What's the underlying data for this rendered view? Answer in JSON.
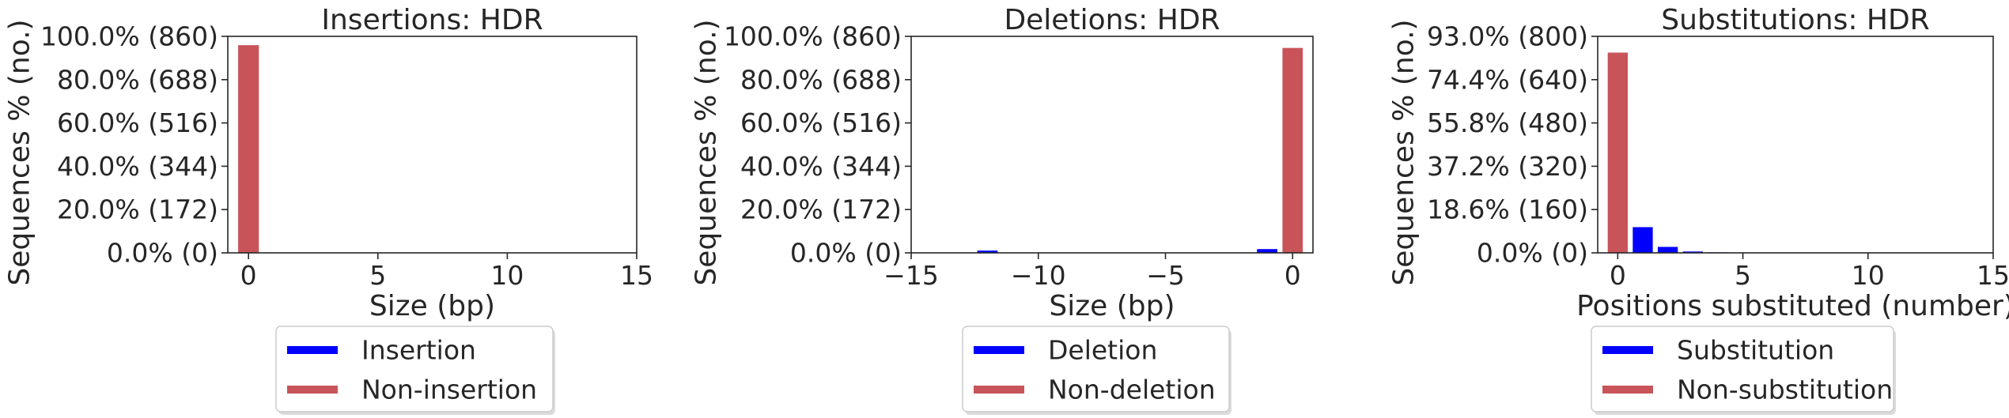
{
  "chart_data": [
    {
      "type": "bar",
      "title": "Insertions: HDR",
      "xlabel": "Size (bp)",
      "ylabel": "Sequences % (no.)",
      "xlim": [
        -0.8,
        15
      ],
      "ylim": [
        0,
        860
      ],
      "xticks": [
        0,
        5,
        10,
        15
      ],
      "xtick_labels": [
        "0",
        "5",
        "10",
        "15"
      ],
      "yticks": [
        0,
        172,
        344,
        516,
        688,
        860
      ],
      "ytick_labels": [
        "0.0% (0)",
        "20.0% (172)",
        "40.0% (344)",
        "60.0% (516)",
        "80.0% (688)",
        "100.0% (860)"
      ],
      "series": [
        {
          "name": "Insertion",
          "color": "#0000ff",
          "points": []
        },
        {
          "name": "Non-insertion",
          "color": "#c8545a",
          "points": [
            {
              "x": 0,
              "y": 825
            }
          ]
        }
      ],
      "legend": {
        "placement": "below",
        "entries": [
          "Insertion",
          "Non-insertion"
        ]
      }
    },
    {
      "type": "bar",
      "title": "Deletions: HDR",
      "xlabel": "Size (bp)",
      "ylabel": "Sequences % (no.)",
      "xlim": [
        -15,
        0.8
      ],
      "ylim": [
        0,
        860
      ],
      "xticks": [
        -15,
        -10,
        -5,
        0
      ],
      "xtick_labels": [
        "−15",
        "−10",
        "−5",
        "0"
      ],
      "yticks": [
        0,
        172,
        344,
        516,
        688,
        860
      ],
      "ytick_labels": [
        "0.0% (0)",
        "20.0% (172)",
        "40.0% (344)",
        "60.0% (516)",
        "80.0% (688)",
        "100.0% (860)"
      ],
      "series": [
        {
          "name": "Deletion",
          "color": "#0000ff",
          "points": [
            {
              "x": -12,
              "y": 9
            },
            {
              "x": -1,
              "y": 15
            }
          ]
        },
        {
          "name": "Non-deletion",
          "color": "#c8545a",
          "points": [
            {
              "x": 0,
              "y": 814
            }
          ]
        }
      ],
      "legend": {
        "placement": "below",
        "entries": [
          "Deletion",
          "Non-deletion"
        ]
      }
    },
    {
      "type": "bar",
      "title": "Substitutions: HDR",
      "xlabel": "Positions substituted (number)",
      "ylabel": "Sequences % (no.)",
      "xlim": [
        -0.8,
        15
      ],
      "ylim": [
        0,
        800
      ],
      "xticks": [
        0,
        5,
        10,
        15
      ],
      "xtick_labels": [
        "0",
        "5",
        "10",
        "15"
      ],
      "yticks": [
        0,
        160,
        320,
        480,
        640,
        800
      ],
      "ytick_labels": [
        "0.0% (0)",
        "18.6% (160)",
        "37.2% (320)",
        "55.8% (480)",
        "74.4% (640)",
        "93.0% (800)"
      ],
      "series": [
        {
          "name": "Substitution",
          "color": "#0000ff",
          "points": [
            {
              "x": 1,
              "y": 95
            },
            {
              "x": 2,
              "y": 22
            },
            {
              "x": 3,
              "y": 5
            },
            {
              "x": 4,
              "y": 2
            }
          ]
        },
        {
          "name": "Non-substitution",
          "color": "#c8545a",
          "points": [
            {
              "x": 0,
              "y": 740
            }
          ]
        }
      ],
      "legend": {
        "placement": "below",
        "entries": [
          "Substitution",
          "Non-substitution"
        ]
      }
    }
  ]
}
